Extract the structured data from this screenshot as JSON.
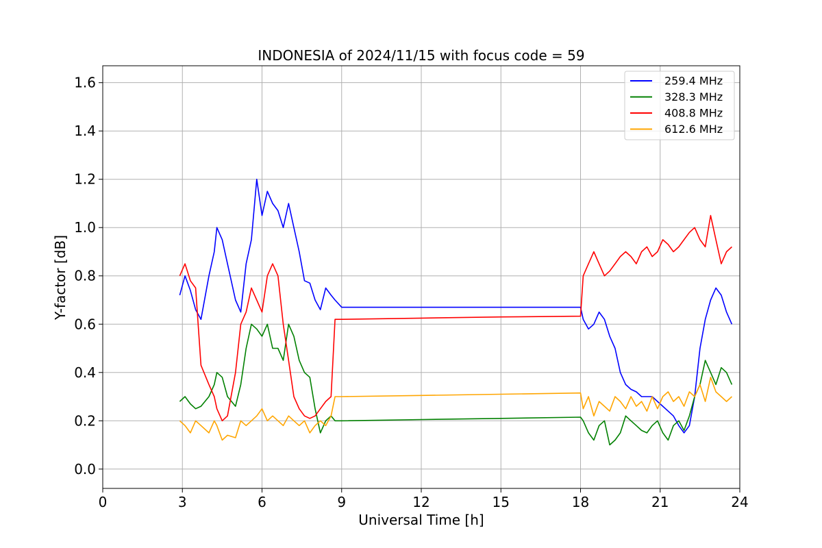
{
  "chart_data": {
    "type": "line",
    "title": "INDONESIA of 2024/11/15 with focus code = 59",
    "xlabel": "Universal Time [h]",
    "ylabel": "Y-factor [dB]",
    "xlim": [
      0,
      24
    ],
    "ylim": [
      -0.08,
      1.67
    ],
    "xticks": [
      0,
      3,
      6,
      9,
      12,
      15,
      18,
      21,
      24
    ],
    "yticks": [
      "0.0",
      "0.2",
      "0.4",
      "0.6",
      "0.8",
      "1.0",
      "1.2",
      "1.4",
      "1.6"
    ],
    "grid": true,
    "legend_position": "upper right",
    "series": [
      {
        "name": "259.4 MHz",
        "color": "#0000ff",
        "x": [
          2.9,
          3.1,
          3.3,
          3.5,
          3.7,
          4.0,
          4.2,
          4.3,
          4.5,
          4.7,
          5.0,
          5.2,
          5.4,
          5.6,
          5.8,
          6.0,
          6.2,
          6.4,
          6.6,
          6.8,
          7.0,
          7.2,
          7.4,
          7.6,
          7.8,
          8.0,
          8.2,
          8.4,
          8.6,
          8.75,
          9.0,
          12.0,
          15.0,
          18.0,
          18.1,
          18.3,
          18.5,
          18.7,
          18.9,
          19.1,
          19.3,
          19.5,
          19.7,
          19.9,
          20.1,
          20.3,
          20.5,
          20.7,
          20.9,
          21.1,
          21.3,
          21.5,
          21.7,
          21.9,
          22.1,
          22.3,
          22.5,
          22.7,
          22.9,
          23.1,
          23.3,
          23.5,
          23.7
        ],
        "y": [
          0.72,
          0.8,
          0.74,
          0.66,
          0.62,
          0.8,
          0.9,
          1.0,
          0.95,
          0.85,
          0.7,
          0.65,
          0.85,
          0.95,
          1.2,
          1.05,
          1.15,
          1.1,
          1.07,
          1.0,
          1.1,
          1.0,
          0.9,
          0.78,
          0.77,
          0.7,
          0.66,
          0.75,
          0.72,
          0.7,
          0.67,
          0.67,
          0.67,
          0.67,
          0.62,
          0.58,
          0.6,
          0.65,
          0.62,
          0.55,
          0.5,
          0.4,
          0.35,
          0.33,
          0.32,
          0.3,
          0.3,
          0.3,
          0.28,
          0.26,
          0.24,
          0.22,
          0.18,
          0.15,
          0.18,
          0.3,
          0.5,
          0.62,
          0.7,
          0.75,
          0.72,
          0.65,
          0.6
        ]
      },
      {
        "name": "328.3 MHz",
        "color": "#008000",
        "x": [
          2.9,
          3.1,
          3.3,
          3.5,
          3.7,
          4.0,
          4.2,
          4.3,
          4.5,
          4.7,
          5.0,
          5.2,
          5.4,
          5.6,
          5.8,
          6.0,
          6.2,
          6.4,
          6.6,
          6.8,
          7.0,
          7.2,
          7.4,
          7.6,
          7.8,
          8.0,
          8.2,
          8.4,
          8.6,
          8.75,
          9.0,
          12.0,
          15.0,
          18.0,
          18.1,
          18.3,
          18.5,
          18.7,
          18.9,
          19.1,
          19.3,
          19.5,
          19.7,
          19.9,
          20.1,
          20.3,
          20.5,
          20.7,
          20.9,
          21.1,
          21.3,
          21.5,
          21.7,
          21.9,
          22.1,
          22.3,
          22.5,
          22.7,
          22.9,
          23.1,
          23.3,
          23.5,
          23.7
        ],
        "y": [
          0.28,
          0.3,
          0.27,
          0.25,
          0.26,
          0.3,
          0.35,
          0.4,
          0.38,
          0.3,
          0.26,
          0.35,
          0.5,
          0.6,
          0.58,
          0.55,
          0.6,
          0.5,
          0.5,
          0.45,
          0.6,
          0.55,
          0.45,
          0.4,
          0.38,
          0.25,
          0.15,
          0.2,
          0.22,
          0.2,
          0.2,
          0.205,
          0.21,
          0.215,
          0.2,
          0.15,
          0.12,
          0.18,
          0.2,
          0.1,
          0.12,
          0.15,
          0.22,
          0.2,
          0.18,
          0.16,
          0.15,
          0.18,
          0.2,
          0.15,
          0.12,
          0.18,
          0.2,
          0.16,
          0.22,
          0.3,
          0.35,
          0.45,
          0.4,
          0.35,
          0.42,
          0.4,
          0.35
        ]
      },
      {
        "name": "408.8 MHz",
        "color": "#ff0000",
        "x": [
          2.9,
          3.1,
          3.3,
          3.5,
          3.7,
          4.0,
          4.2,
          4.3,
          4.5,
          4.7,
          5.0,
          5.2,
          5.4,
          5.6,
          5.8,
          6.0,
          6.2,
          6.4,
          6.6,
          6.8,
          7.0,
          7.2,
          7.4,
          7.6,
          7.8,
          8.0,
          8.2,
          8.4,
          8.6,
          8.75,
          9.0,
          12.0,
          15.0,
          18.0,
          18.1,
          18.3,
          18.5,
          18.7,
          18.9,
          19.1,
          19.3,
          19.5,
          19.7,
          19.9,
          20.1,
          20.3,
          20.5,
          20.7,
          20.9,
          21.1,
          21.3,
          21.5,
          21.7,
          21.9,
          22.1,
          22.3,
          22.5,
          22.7,
          22.9,
          23.1,
          23.3,
          23.5,
          23.7
        ],
        "y": [
          0.8,
          0.85,
          0.78,
          0.75,
          0.43,
          0.35,
          0.3,
          0.25,
          0.2,
          0.22,
          0.4,
          0.6,
          0.65,
          0.75,
          0.7,
          0.65,
          0.8,
          0.85,
          0.8,
          0.6,
          0.45,
          0.3,
          0.25,
          0.22,
          0.21,
          0.22,
          0.25,
          0.28,
          0.3,
          0.62,
          0.62,
          0.625,
          0.63,
          0.633,
          0.8,
          0.85,
          0.9,
          0.85,
          0.8,
          0.82,
          0.85,
          0.88,
          0.9,
          0.88,
          0.85,
          0.9,
          0.92,
          0.88,
          0.9,
          0.95,
          0.93,
          0.9,
          0.92,
          0.95,
          0.98,
          1.0,
          0.95,
          0.92,
          1.05,
          0.95,
          0.85,
          0.9,
          0.92
        ]
      },
      {
        "name": "612.6 MHz",
        "color": "#ffa500",
        "x": [
          2.9,
          3.1,
          3.3,
          3.5,
          3.7,
          4.0,
          4.2,
          4.3,
          4.5,
          4.7,
          5.0,
          5.2,
          5.4,
          5.6,
          5.8,
          6.0,
          6.2,
          6.4,
          6.6,
          6.8,
          7.0,
          7.2,
          7.4,
          7.6,
          7.8,
          8.0,
          8.2,
          8.4,
          8.6,
          8.75,
          9.0,
          12.0,
          15.0,
          18.0,
          18.1,
          18.3,
          18.5,
          18.7,
          18.9,
          19.1,
          19.3,
          19.5,
          19.7,
          19.9,
          20.1,
          20.3,
          20.5,
          20.7,
          20.9,
          21.1,
          21.3,
          21.5,
          21.7,
          21.9,
          22.1,
          22.3,
          22.5,
          22.7,
          22.9,
          23.1,
          23.3,
          23.5,
          23.7
        ],
        "y": [
          0.2,
          0.18,
          0.15,
          0.2,
          0.18,
          0.15,
          0.2,
          0.18,
          0.12,
          0.14,
          0.13,
          0.2,
          0.18,
          0.2,
          0.22,
          0.25,
          0.2,
          0.22,
          0.2,
          0.18,
          0.22,
          0.2,
          0.18,
          0.2,
          0.15,
          0.18,
          0.2,
          0.18,
          0.22,
          0.3,
          0.3,
          0.305,
          0.31,
          0.315,
          0.25,
          0.3,
          0.22,
          0.28,
          0.26,
          0.24,
          0.3,
          0.28,
          0.25,
          0.3,
          0.26,
          0.28,
          0.24,
          0.3,
          0.25,
          0.3,
          0.32,
          0.28,
          0.3,
          0.26,
          0.32,
          0.3,
          0.35,
          0.28,
          0.38,
          0.32,
          0.3,
          0.28,
          0.3
        ]
      }
    ]
  }
}
